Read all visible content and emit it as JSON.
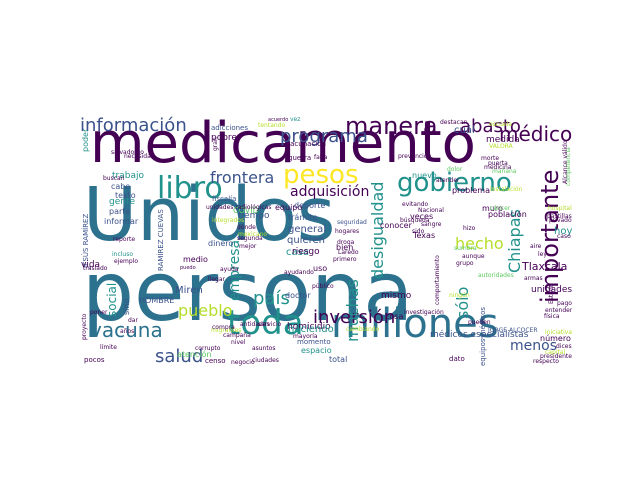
{
  "colors": {
    "dark_purple": "#440154",
    "indigo": "#3b528b",
    "teal": "#21918c",
    "steel_teal": "#2c728e",
    "green": "#5ec962",
    "lime": "#b5de2b",
    "yellow": "#fde725"
  },
  "words": [
    {
      "text": "Unidos",
      "color": "#2c728e"
    },
    {
      "text": "persona",
      "color": "#2c728e"
    },
    {
      "text": "medicamento",
      "color": "#440154"
    },
    {
      "text": "toda",
      "color": "#21918c"
    },
    {
      "text": "millones",
      "color": "#2c728e"
    },
    {
      "text": "manera",
      "color": "#440154"
    },
    {
      "text": "gobierno",
      "color": "#21918c"
    },
    {
      "text": "importante",
      "color": "#440154"
    },
    {
      "text": "libro",
      "color": "#21918c"
    },
    {
      "text": "vacuna",
      "color": "#2c728e"
    },
    {
      "text": "pesos",
      "color": "#fde725"
    },
    {
      "text": "programa",
      "color": "#3b528b"
    },
    {
      "text": "información",
      "color": "#3b528b"
    },
    {
      "text": "abasto",
      "color": "#440154"
    },
    {
      "text": "médico",
      "color": "#440154"
    },
    {
      "text": "Chiapas",
      "color": "#21918c"
    },
    {
      "text": "desigualdad",
      "color": "#21918c"
    },
    {
      "text": "hecho",
      "color": "#b5de2b"
    },
    {
      "text": "país",
      "color": "#21918c"
    },
    {
      "text": "inversión",
      "color": "#440154"
    },
    {
      "text": "salud",
      "color": "#3b528b"
    },
    {
      "text": "pueblo",
      "color": "#b5de2b"
    },
    {
      "text": "sólo",
      "color": "#21918c"
    },
    {
      "text": "muchas",
      "color": "#21918c"
    },
    {
      "text": "menos",
      "color": "#3b528b"
    },
    {
      "text": "frontera",
      "color": "#3b528b"
    },
    {
      "text": "adquisición",
      "color": "#440154"
    },
    {
      "text": "empresa",
      "color": "#21918c"
    },
    {
      "text": "cuál",
      "color": "#3b528b"
    },
    {
      "text": "Tlaxcala",
      "color": "#440154"
    },
    {
      "text": "HOMBRE",
      "color": "#3b528b"
    },
    {
      "text": "JESÚS RAMÍREZ",
      "color": "#3b528b"
    },
    {
      "text": "RAMÍREZ CUEVAS",
      "color": "#3b528b"
    },
    {
      "text": "social",
      "color": "#21918c"
    },
    {
      "text": "Miren",
      "color": "#3b528b"
    },
    {
      "text": "casa",
      "color": "#21918c"
    },
    {
      "text": "general",
      "color": "#3b528b"
    },
    {
      "text": "quieren",
      "color": "#3b528b"
    },
    {
      "text": "riesgo",
      "color": "#440154"
    },
    {
      "text": "deporte",
      "color": "#3b528b"
    },
    {
      "text": "trámite",
      "color": "#3b528b"
    },
    {
      "text": "equipo",
      "color": "#440154"
    },
    {
      "text": "COVID",
      "color": "#5ec962"
    },
    {
      "text": "tiempo",
      "color": "#3b528b"
    },
    {
      "text": "dinero",
      "color": "#3b528b"
    },
    {
      "text": "medio",
      "color": "#440154"
    },
    {
      "text": "homicidio",
      "color": "#440154"
    },
    {
      "text": "haciendo",
      "color": "#21918c"
    },
    {
      "text": "espacio",
      "color": "#21918c"
    },
    {
      "text": "total",
      "color": "#3b528b"
    },
    {
      "text": "momento",
      "color": "#3b528b"
    },
    {
      "text": "mismo",
      "color": "#440154"
    },
    {
      "text": "cosa",
      "color": "#440154"
    },
    {
      "text": "conocer",
      "color": "#440154"
    },
    {
      "text": "Texas",
      "color": "#440154"
    },
    {
      "text": "veces",
      "color": "#440154"
    },
    {
      "text": "población",
      "color": "#440154"
    },
    {
      "text": "problema",
      "color": "#440154"
    },
    {
      "text": "muro",
      "color": "#440154"
    },
    {
      "text": "hoy",
      "color": "#21918c"
    },
    {
      "text": "unidades",
      "color": "#440154"
    },
    {
      "text": "número",
      "color": "#440154"
    },
    {
      "text": "médicos especialistas",
      "color": "#3b528b"
    },
    {
      "text": "equipos médicos",
      "color": "#3b528b"
    },
    {
      "text": "trabajo",
      "color": "#21918c"
    },
    {
      "text": "cabo",
      "color": "#3b528b"
    },
    {
      "text": "gente",
      "color": "#21918c"
    },
    {
      "text": "parte",
      "color": "#3b528b"
    },
    {
      "text": "texto",
      "color": "#3b528b"
    },
    {
      "text": "informar",
      "color": "#3b528b"
    },
    {
      "text": "vida",
      "color": "#440154"
    },
    {
      "text": "poder",
      "color": "#21918c"
    },
    {
      "text": "sino",
      "color": "#3b528b"
    },
    {
      "text": "pobre",
      "color": "#440154"
    },
    {
      "text": "adicciones",
      "color": "#3b528b"
    },
    {
      "text": "vacunación",
      "color": "#440154"
    },
    {
      "text": "guerra",
      "color": "#440154"
    },
    {
      "text": "nuevo",
      "color": "#21918c"
    },
    {
      "text": "bien",
      "color": "#440154"
    },
    {
      "text": "uso",
      "color": "#440154"
    },
    {
      "text": "atención",
      "color": "#5ec962"
    },
    {
      "text": "mayoría",
      "color": "#440154"
    },
    {
      "text": "dato",
      "color": "#440154"
    },
    {
      "text": "hizo",
      "color": "#440154"
    },
    {
      "text": "ayuda",
      "color": "#440154"
    },
    {
      "text": "migrantes",
      "color": "#b5de2b"
    },
    {
      "text": "doctor",
      "color": "#3b528b"
    },
    {
      "text": "pocos",
      "color": "#440154"
    },
    {
      "text": "compra",
      "color": "#440154"
    },
    {
      "text": "campaña",
      "color": "#440154"
    },
    {
      "text": "llegar",
      "color": "#440154"
    },
    {
      "text": "Nacional",
      "color": "#440154"
    },
    {
      "text": "acuerdo",
      "color": "#440154"
    },
    {
      "text": "destacan",
      "color": "#440154"
    },
    {
      "text": "prevención",
      "color": "#440154"
    },
    {
      "text": "investigación",
      "color": "#440154"
    },
    {
      "text": "pueden",
      "color": "#440154"
    },
    {
      "text": "JORGE ALCOCER",
      "color": "#3b528b"
    },
    {
      "text": "respecto",
      "color": "#440154"
    },
    {
      "text": "primero",
      "color": "#440154"
    },
    {
      "text": "hogares",
      "color": "#440154"
    },
    {
      "text": "seguridad",
      "color": "#3b528b"
    },
    {
      "text": "dónde",
      "color": "#440154"
    },
    {
      "text": "segunda",
      "color": "#440154"
    },
    {
      "text": "mejor",
      "color": "#440154"
    },
    {
      "text": "corrupto",
      "color": "#440154"
    },
    {
      "text": "censo",
      "color": "#440154"
    },
    {
      "text": "límite",
      "color": "#440154"
    },
    {
      "text": "incluso",
      "color": "#21918c"
    },
    {
      "text": "reporte",
      "color": "#440154"
    },
    {
      "text": "ejemplo",
      "color": "#440154"
    },
    {
      "text": "traslado",
      "color": "#440154"
    },
    {
      "text": "puedo",
      "color": "#440154"
    },
    {
      "text": "ayudando",
      "color": "#440154"
    },
    {
      "text": "cambiando",
      "color": "#b5de2b"
    },
    {
      "text": "público",
      "color": "#440154"
    },
    {
      "text": "grupo",
      "color": "#440154"
    },
    {
      "text": "aunque",
      "color": "#440154"
    },
    {
      "text": "sumbra",
      "color": "#5ec962"
    },
    {
      "text": "búsqueda",
      "color": "#440154"
    },
    {
      "text": "evitando",
      "color": "#440154"
    },
    {
      "text": "necesidad",
      "color": "#440154"
    },
    {
      "text": "vez",
      "color": "#21918c"
    },
    {
      "text": "medida",
      "color": "#440154"
    },
    {
      "text": "fiscalía",
      "color": "#3b528b"
    },
    {
      "text": "gran",
      "color": "#440154"
    },
    {
      "text": "falta",
      "color": "#440154"
    },
    {
      "text": "droga",
      "color": "#440154"
    },
    {
      "text": "Laredo",
      "color": "#440154"
    },
    {
      "text": "mexicano",
      "color": "#b5de2b"
    },
    {
      "text": "salvadoreo",
      "color": "#440154"
    },
    {
      "text": "proyecto",
      "color": "#440154"
    },
    {
      "text": "años",
      "color": "#440154"
    },
    {
      "text": "dar",
      "color": "#440154"
    },
    {
      "text": "poner",
      "color": "#440154"
    },
    {
      "text": "tentando",
      "color": "#b5de2b"
    },
    {
      "text": "mañana",
      "color": "#5ec962"
    },
    {
      "text": "morte",
      "color": "#440154"
    },
    {
      "text": "dolor",
      "color": "#5ec962"
    },
    {
      "text": "medicina",
      "color": "#440154"
    },
    {
      "text": "cáncer",
      "color": "#5ec962"
    },
    {
      "text": "VALORA",
      "color": "#b5de2b"
    },
    {
      "text": "autoridades",
      "color": "#5ec962"
    },
    {
      "text": "antidades",
      "color": "#440154"
    },
    {
      "text": "integrados",
      "color": "#b5de2b"
    },
    {
      "text": "unidades radiológicas",
      "color": "#440154"
    },
    {
      "text": "comportamiento",
      "color": "#440154"
    },
    {
      "text": "competencia",
      "color": "#5ec962"
    },
    {
      "text": "Alcance válido",
      "color": "#440154"
    },
    {
      "text": "Estado",
      "color": "#440154"
    },
    {
      "text": "privado",
      "color": "#440154"
    },
    {
      "text": "caso",
      "color": "#440154"
    },
    {
      "text": "física",
      "color": "#440154"
    },
    {
      "text": "escuela",
      "color": "#b5de2b"
    },
    {
      "text": "puerta",
      "color": "#440154"
    },
    {
      "text": "instalación",
      "color": "#b5de2b"
    },
    {
      "text": "buscan",
      "color": "#440154"
    },
    {
      "text": "sido",
      "color": "#440154"
    },
    {
      "text": "nivel",
      "color": "#440154"
    },
    {
      "text": "ciudades",
      "color": "#440154"
    },
    {
      "text": "negocio",
      "color": "#440154"
    },
    {
      "text": "ningún",
      "color": "#b5de2b"
    },
    {
      "text": "iniciativa",
      "color": "#b5de2b"
    },
    {
      "text": "dices",
      "color": "#440154"
    },
    {
      "text": "capital",
      "color": "#b5de2b"
    },
    {
      "text": "presidente",
      "color": "#440154"
    },
    {
      "text": "entender",
      "color": "#440154"
    },
    {
      "text": "pago",
      "color": "#440154"
    },
    {
      "text": "armas",
      "color": "#440154"
    },
    {
      "text": "aire",
      "color": "#440154"
    },
    {
      "text": "ley",
      "color": "#440154"
    },
    {
      "text": "hospital",
      "color": "#b5de2b"
    },
    {
      "text": "pastillas",
      "color": "#440154"
    },
    {
      "text": "atender",
      "color": "#440154"
    },
    {
      "text": "sangre",
      "color": "#440154"
    },
    {
      "text": "asuntos",
      "color": "#440154"
    },
    {
      "text": "servicio",
      "color": "#440154"
    }
  ]
}
